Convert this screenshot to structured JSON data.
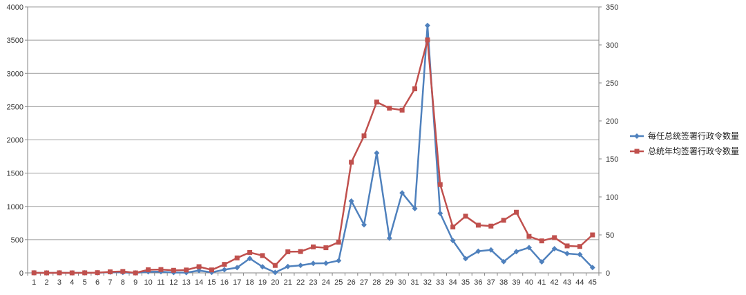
{
  "chart_data": {
    "type": "line",
    "title": "",
    "xlabel": "",
    "ylabel": "",
    "y_left_lim": [
      0,
      4000
    ],
    "y_left_ticks": [
      0,
      500,
      1000,
      1500,
      2000,
      2500,
      3000,
      3500,
      4000
    ],
    "y_right_lim": [
      0,
      350
    ],
    "y_right_ticks": [
      0,
      50,
      100,
      150,
      200,
      250,
      300,
      350
    ],
    "grid": true,
    "legend_position": "right",
    "categories": [
      "1",
      "2",
      "3",
      "4",
      "5",
      "6",
      "7",
      "8",
      "9",
      "10",
      "11",
      "12",
      "13",
      "14",
      "15",
      "16",
      "17",
      "18",
      "19",
      "20",
      "21",
      "22",
      "23",
      "24",
      "25",
      "26",
      "27",
      "28",
      "29",
      "30",
      "31",
      "32",
      "33",
      "34",
      "35",
      "36",
      "37",
      "38",
      "39",
      "40",
      "41",
      "42",
      "43",
      "44",
      "45"
    ],
    "series": [
      {
        "name": "每任总统签署行政令数量",
        "axis": "left",
        "color": "#4F81BD",
        "marker": "diamond",
        "values": [
          1,
          0,
          1,
          0,
          1,
          1,
          12,
          6,
          0,
          17,
          18,
          5,
          4,
          35,
          8,
          48,
          79,
          217,
          92,
          6,
          96,
          113,
          143,
          145,
          185,
          1081,
          724,
          1803,
          522,
          1203,
          968,
          3721,
          896,
          486,
          214,
          326,
          345,
          169,
          320,
          380,
          166,
          364,
          291,
          276,
          80
        ]
      },
      {
        "name": "总统年均签署行政令数量",
        "axis": "right",
        "color": "#C0504D",
        "marker": "square",
        "values": [
          0.1,
          0,
          0.1,
          0,
          0.1,
          0.3,
          1.4,
          1.9,
          0,
          4.1,
          4.4,
          3.4,
          3.8,
          8.2,
          3.9,
          11.2,
          19.7,
          26.9,
          22.8,
          9.8,
          27.8,
          28.1,
          34.2,
          33.1,
          40.4,
          145.6,
          180.3,
          224.8,
          216.7,
          214.2,
          242.2,
          306.5,
          116.2,
          60.4,
          74.6,
          62.8,
          61.6,
          69.2,
          79.8,
          48.0,
          42.1,
          46.4,
          35.5,
          34.8,
          50.0
        ]
      }
    ]
  }
}
